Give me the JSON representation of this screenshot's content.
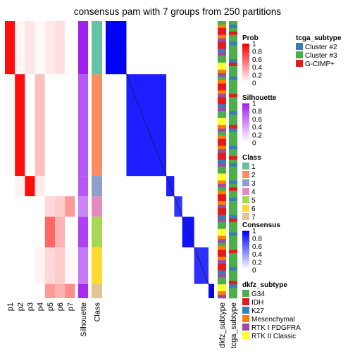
{
  "chart_data": {
    "type": "heatmap",
    "title": "consensus pam with 7 groups from 250 partitions",
    "columns": [
      "p1",
      "p2",
      "p3",
      "p4",
      "p5",
      "p6",
      "p7",
      "Silhouette",
      "Class"
    ],
    "consensus_label": "dkfz_subtype",
    "tcga_label": "tcga_subtype",
    "class_colors": {
      "1": "#66C2A5",
      "2": "#FC8D62",
      "3": "#8DA0CB",
      "4": "#E78AC3",
      "5": "#A6D854",
      "6": "#FFD92F",
      "7": "#E5C494"
    },
    "groups": [
      {
        "class": 1,
        "rows": 26,
        "silhouette": 1.0,
        "prob": [
          0.95,
          0.04,
          0.1,
          0.02,
          0.08,
          0.12,
          0.0
        ]
      },
      {
        "class": 2,
        "rows": 50,
        "silhouette": 0.75,
        "prob": [
          0.02,
          0.95,
          0.0,
          0.25,
          0.0,
          0.0,
          0.0
        ]
      },
      {
        "class": 3,
        "rows": 10,
        "silhouette": 0.75,
        "prob": [
          0.0,
          0.05,
          0.95,
          0.08,
          0.0,
          0.0,
          0.0
        ]
      },
      {
        "class": 4,
        "rows": 10,
        "silhouette": 0.55,
        "prob": [
          0.0,
          0.0,
          0.0,
          0.0,
          0.15,
          0.2,
          0.4
        ]
      },
      {
        "class": 5,
        "rows": 15,
        "silhouette": 0.85,
        "prob": [
          0.0,
          0.0,
          0.0,
          0.0,
          0.6,
          0.3,
          0.0
        ]
      },
      {
        "class": 6,
        "rows": 18,
        "silhouette": 0.6,
        "prob": [
          0.0,
          0.0,
          0.0,
          0.05,
          0.15,
          0.2,
          0.03
        ]
      },
      {
        "class": 7,
        "rows": 7,
        "silhouette": 0.95,
        "prob": [
          0.0,
          0.0,
          0.0,
          0.0,
          0.4,
          0.3,
          0.45
        ]
      }
    ],
    "legends": {
      "prob": {
        "title": "Prob",
        "ticks": [
          "1",
          "0.8",
          "0.6",
          "0.4",
          "0.2",
          "0"
        ]
      },
      "silhouette": {
        "title": "Silhouette",
        "ticks": [
          "1",
          "0.8",
          "0.6",
          "0.4",
          "0.2",
          "0"
        ]
      },
      "class": {
        "title": "Class",
        "items": [
          "1",
          "2",
          "3",
          "4",
          "5",
          "6",
          "7"
        ]
      },
      "consensus": {
        "title": "Consensus",
        "ticks": [
          "1",
          "0.8",
          "0.6",
          "0.4",
          "0.2",
          "0"
        ]
      },
      "dkfz": {
        "title": "dkfz_subtype",
        "items": [
          {
            "label": "G34",
            "color": "#4DAF4A"
          },
          {
            "label": "IDH",
            "color": "#E41A1C"
          },
          {
            "label": "K27",
            "color": "#377EB8"
          },
          {
            "label": "Mesenchymal",
            "color": "#FF7F00"
          },
          {
            "label": "RTK I PDGFRA",
            "color": "#984EA3"
          },
          {
            "label": "RTK II Classic",
            "color": "#FFFF33"
          }
        ]
      },
      "tcga": {
        "title": "tcga_subtype",
        "items": [
          {
            "label": "Cluster #2",
            "color": "#377EB8"
          },
          {
            "label": "Cluster #3",
            "color": "#4DAF4A"
          },
          {
            "label": "G-CIMP+",
            "color": "#E41A1C"
          }
        ]
      }
    }
  }
}
